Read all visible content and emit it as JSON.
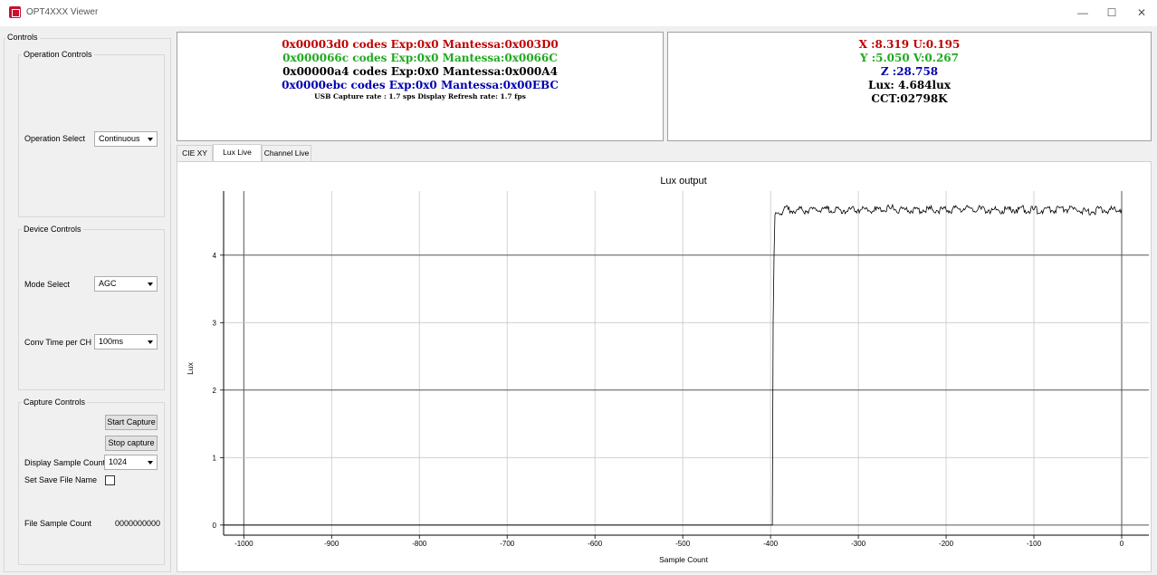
{
  "window": {
    "title": "OPT4XXX Viewer",
    "minimize": "—",
    "maximize": "☐",
    "close": "✕"
  },
  "controls": {
    "title": "Controls",
    "operation": {
      "title": "Operation Controls",
      "select_label": "Operation Select",
      "select_value": "Continuous"
    },
    "device": {
      "title": "Device Controls",
      "mode_label": "Mode Select",
      "mode_value": "AGC",
      "conv_label": "Conv Time per CH",
      "conv_value": "100ms"
    },
    "capture": {
      "title": "Capture Controls",
      "start_label": "Start Capture",
      "stop_label": "Stop capture",
      "sample_count_label": "Display Sample Count",
      "sample_count_value": "1024",
      "save_file_label": "Set Save File Name",
      "file_sample_label": "File Sample Count",
      "file_sample_value": "0000000000"
    }
  },
  "codes_panel": {
    "line1": "0x00003d0 codes Exp:0x0 Mantessa:0x003D0",
    "line2": "0x000066c codes Exp:0x0 Mantessa:0x0066C",
    "line3": "0x00000a4 codes Exp:0x0 Mantessa:0x000A4",
    "line4": "0x0000ebc codes Exp:0x0 Mantessa:0x00EBC",
    "rates": "USB Capture rate : 1.7 sps Display Refresh rate: 1.7 fps",
    "colors": {
      "line1": "#c00000",
      "line2": "#1eaa1e",
      "line3": "#000000",
      "line4": "#0000b0"
    }
  },
  "color_panel": {
    "line1": "X :8.319 U:0.195",
    "line2": "Y :5.050 V:0.267",
    "line3": "Z :28.758",
    "line4": "Lux: 4.684lux",
    "line5": "CCT:02798K",
    "colors": {
      "line1": "#c00000",
      "line2": "#1eaa1e",
      "line3": "#0000b0",
      "line4": "#000000",
      "line5": "#000000"
    }
  },
  "tabs": [
    {
      "label": "CIE XY",
      "active": false
    },
    {
      "label": "Lux Live",
      "active": true
    },
    {
      "label": "Channel Live",
      "active": false
    }
  ],
  "chart_data": {
    "type": "line",
    "title": "Lux output",
    "xlabel": "Sample Count",
    "ylabel": "Lux",
    "xlim": [
      -1023,
      0
    ],
    "ylim": [
      -0.15,
      4.95
    ],
    "x_ticks": [
      -1000,
      -900,
      -800,
      -700,
      -600,
      -500,
      -400,
      -300,
      -200,
      -100,
      0
    ],
    "y_ticks": [
      0,
      1,
      2,
      3,
      4
    ],
    "grid": true,
    "series": [
      {
        "x": [
          -1023,
          -398,
          -397,
          -396,
          -395,
          -394,
          -394,
          -380,
          -360,
          -340,
          -320,
          -300,
          -280,
          -260,
          -240,
          -220,
          -200,
          -180,
          -160,
          -140,
          -120,
          -100,
          -80,
          -60,
          -40,
          -20,
          0
        ],
        "y": [
          0,
          0,
          3.0,
          4.0,
          4.6,
          4.63,
          4.63,
          4.68,
          4.66,
          4.69,
          4.67,
          4.68,
          4.67,
          4.69,
          4.66,
          4.68,
          4.67,
          4.69,
          4.68,
          4.66,
          4.68,
          4.67,
          4.66,
          4.68,
          4.65,
          4.67,
          4.68
        ]
      }
    ]
  }
}
